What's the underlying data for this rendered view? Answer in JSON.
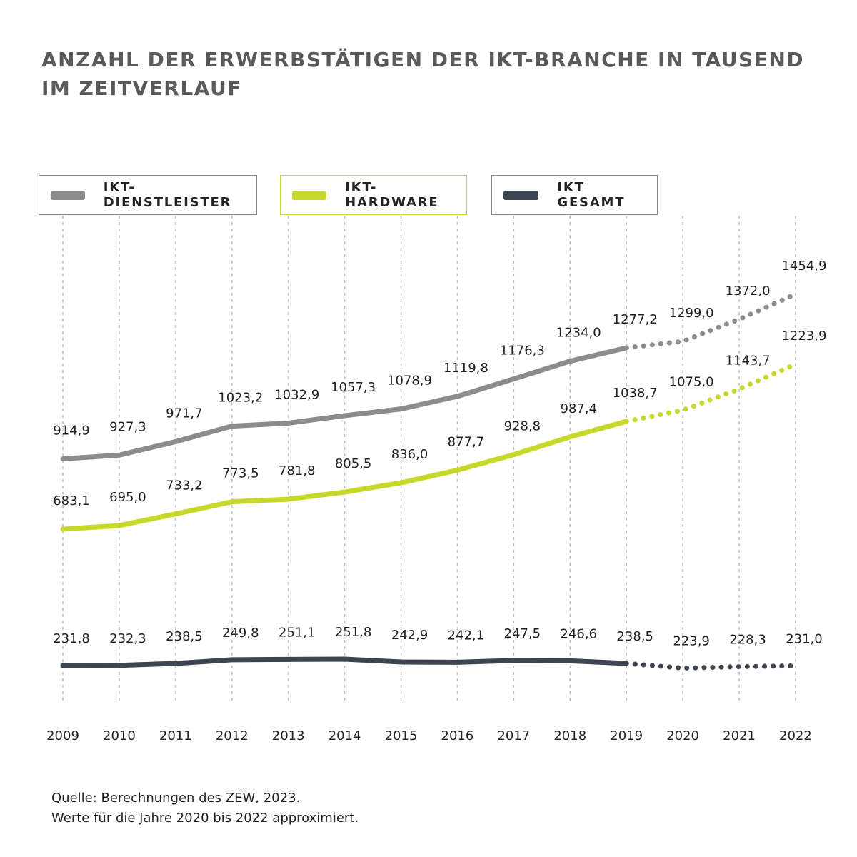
{
  "title": {
    "line1": "ANZAHL DER ERWERBSTÄTIGEN DER IKT-BRANCHE IN TAUSEND",
    "line2": "IM ZEITVERLAUF"
  },
  "legend": [
    {
      "label": "IKT-DIENSTLEISTER",
      "color": "#8c8c8c",
      "icon": "gray-swatch"
    },
    {
      "label": "IKT-HARDWARE",
      "color": "#c8d82a",
      "icon": "lime-swatch"
    },
    {
      "label": "IKT GESAMT",
      "color": "#3d4650",
      "icon": "dark-swatch"
    }
  ],
  "source": {
    "line1": "Quelle: Berechnungen des ZEW, 2023.",
    "line2": "Werte für die Jahre 2020 bis 2022 approximiert."
  },
  "chart_data": {
    "type": "line",
    "title": "ANZAHL DER ERWERBSTÄTIGEN DER IKT-BRANCHE IN TAUSEND IM ZEITVERLAUF",
    "x": [
      "2009",
      "2010",
      "2011",
      "2012",
      "2013",
      "2014",
      "2015",
      "2016",
      "2017",
      "2018",
      "2019",
      "2020",
      "2021",
      "2022"
    ],
    "approximated_from": "2020",
    "grid": "vertical dashed",
    "legend_position": "top",
    "series": [
      {
        "name": "IKT-DIENSTLEISTER",
        "color": "#8c8c8c",
        "values": [
          914.9,
          927.3,
          971.7,
          1023.2,
          1032.9,
          1057.3,
          1078.9,
          1119.8,
          1176.3,
          1234.0,
          1277.2,
          1299.0,
          1372.0,
          1454.9
        ],
        "labels": [
          "914,9",
          "927,3",
          "971,7",
          "1023,2",
          "1032,9",
          "1057,3",
          "1078,9",
          "1119,8",
          "1176,3",
          "1234,0",
          "1277,2",
          "1299,0",
          "1372,0",
          "1454,9"
        ]
      },
      {
        "name": "IKT-HARDWARE",
        "color": "#c8d82a",
        "values": [
          683.1,
          695.0,
          733.2,
          773.5,
          781.8,
          805.5,
          836.0,
          877.7,
          928.8,
          987.4,
          1038.7,
          1075.0,
          1143.7,
          1223.9
        ],
        "labels": [
          "683,1",
          "695,0",
          "733,2",
          "773,5",
          "781,8",
          "805,5",
          "836,0",
          "877,7",
          "928,8",
          "987,4",
          "1038,7",
          "1075,0",
          "1143,7",
          "1223,9"
        ]
      },
      {
        "name": "IKT GESAMT",
        "color": "#3d4650",
        "values": [
          231.8,
          232.3,
          238.5,
          249.8,
          251.1,
          251.8,
          242.9,
          242.1,
          247.5,
          246.6,
          238.5,
          223.9,
          228.3,
          231.0
        ],
        "labels": [
          "231,8",
          "232,3",
          "238,5",
          "249,8",
          "251,1",
          "251,8",
          "242,9",
          "242,1",
          "247,5",
          "246,6",
          "238,5",
          "223,9",
          "228,3",
          "231,0"
        ]
      }
    ]
  }
}
